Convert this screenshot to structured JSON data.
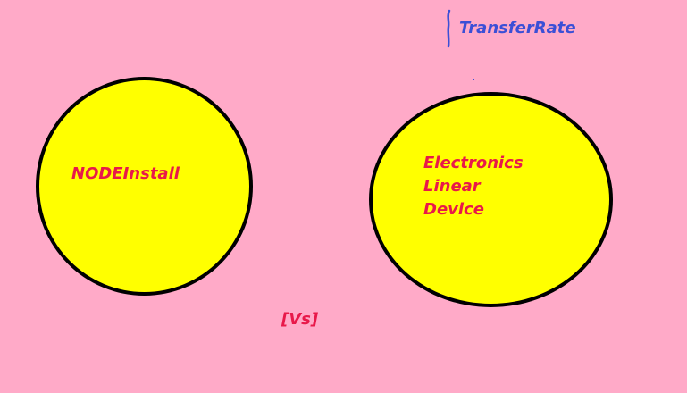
{
  "canvas": {
    "background": "#ffaac8"
  },
  "nodes": {
    "left": {
      "label": "NODEInstall",
      "fill": "#ffff00",
      "text_color": "#e8194a"
    },
    "right": {
      "lines": [
        "Electronics",
        "Linear",
        "Device"
      ],
      "fill": "#ffff00",
      "text_color": "#e8194a"
    }
  },
  "annotations": {
    "vs": "[Vs]",
    "transfer_rate": "TransferRate",
    "transfer_rate_color": "#3b4fd6"
  }
}
